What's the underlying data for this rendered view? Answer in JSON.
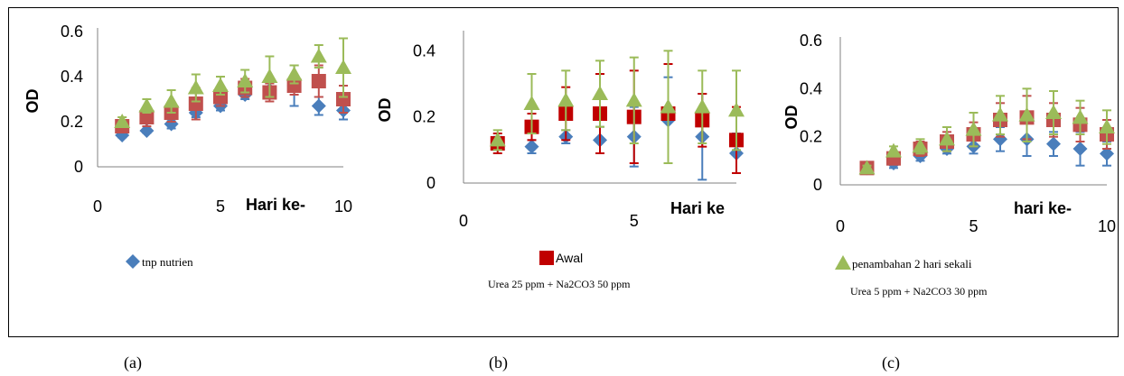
{
  "colors": {
    "blue": "#4a7ebb",
    "red": "#c0504d",
    "green": "#9bbb59",
    "red_marker": "#c00000",
    "axis": "#808080"
  },
  "panel_labels": [
    "(a)",
    "(b)",
    "(c)"
  ],
  "chart_data": [
    {
      "type": "scatter",
      "panel": "(a)",
      "xlabel": "Hari ke-",
      "ylabel": "OD",
      "xlim": [
        0,
        10
      ],
      "ylim": [
        0,
        0.6
      ],
      "xticks": [
        "0",
        "5",
        "10"
      ],
      "yticks": [
        "0",
        "0.2",
        "0.4",
        "0.6"
      ],
      "legend": [
        "tnp nutrien"
      ],
      "caption": "",
      "series": [
        {
          "color": "blue",
          "marker": "diamond",
          "x": [
            1,
            2,
            3,
            4,
            5,
            6,
            7,
            8,
            9,
            10
          ],
          "y": [
            0.14,
            0.16,
            0.19,
            0.24,
            0.27,
            0.32,
            0.34,
            0.36,
            0.27,
            0.25
          ],
          "err": [
            0.01,
            0.01,
            0.02,
            0.02,
            0.02,
            0.02,
            0.03,
            0.09,
            0.04,
            0.04
          ]
        },
        {
          "color": "red",
          "marker": "square",
          "x": [
            1,
            2,
            3,
            4,
            5,
            6,
            7,
            8,
            9,
            10
          ],
          "y": [
            0.18,
            0.22,
            0.24,
            0.28,
            0.31,
            0.35,
            0.33,
            0.36,
            0.38,
            0.3
          ],
          "err": [
            0.02,
            0.04,
            0.04,
            0.07,
            0.04,
            0.04,
            0.04,
            0.04,
            0.07,
            0.06
          ]
        },
        {
          "color": "green",
          "marker": "triangle",
          "x": [
            1,
            2,
            3,
            4,
            5,
            6,
            7,
            8,
            9,
            10
          ],
          "y": [
            0.2,
            0.27,
            0.29,
            0.35,
            0.36,
            0.38,
            0.4,
            0.41,
            0.49,
            0.44
          ],
          "err": [
            0.02,
            0.03,
            0.05,
            0.06,
            0.04,
            0.05,
            0.09,
            0.04,
            0.05,
            0.13
          ]
        }
      ]
    },
    {
      "type": "scatter",
      "panel": "(b)",
      "xlabel": "Hari ke",
      "ylabel": "OD",
      "xlim": [
        0,
        8
      ],
      "ylim": [
        0,
        0.45
      ],
      "xticks": [
        "0",
        "5"
      ],
      "yticks": [
        "0",
        "0.2",
        "0.4"
      ],
      "legend": [
        "Awal"
      ],
      "caption": "Urea 25 ppm + Na2CO3 50 ppm",
      "series": [
        {
          "color": "blue",
          "marker": "diamond",
          "x": [
            1,
            2,
            3,
            4,
            5,
            6,
            7,
            8
          ],
          "y": [
            0.12,
            0.11,
            0.14,
            0.13,
            0.14,
            0.19,
            0.14,
            0.09
          ],
          "err": [
            0.02,
            0.02,
            0.02,
            0.04,
            0.09,
            0.13,
            0.13,
            0.06
          ]
        },
        {
          "color": "red_marker",
          "marker": "square",
          "x": [
            1,
            2,
            3,
            4,
            5,
            6,
            7,
            8
          ],
          "y": [
            0.12,
            0.17,
            0.21,
            0.21,
            0.2,
            0.21,
            0.19,
            0.13
          ],
          "err": [
            0.03,
            0.04,
            0.08,
            0.12,
            0.14,
            0.15,
            0.08,
            0.1
          ]
        },
        {
          "color": "green",
          "marker": "triangle",
          "x": [
            1,
            2,
            3,
            4,
            5,
            6,
            7,
            8
          ],
          "y": [
            0.13,
            0.24,
            0.25,
            0.27,
            0.25,
            0.23,
            0.23,
            0.22
          ],
          "err": [
            0.03,
            0.09,
            0.09,
            0.1,
            0.13,
            0.17,
            0.11,
            0.12
          ]
        }
      ]
    },
    {
      "type": "scatter",
      "panel": "(c)",
      "xlabel": "hari ke-",
      "ylabel": "OD",
      "xlim": [
        0,
        10
      ],
      "ylim": [
        0,
        0.6
      ],
      "xticks": [
        "0",
        "5",
        "10"
      ],
      "yticks": [
        "0",
        "0.2",
        "0.4",
        "0.6"
      ],
      "legend": [
        "penambahan 2 hari sekali"
      ],
      "caption": "Urea 5 ppm + Na2CO3 30 ppm",
      "series": [
        {
          "color": "blue",
          "marker": "diamond",
          "x": [
            1,
            2,
            3,
            4,
            5,
            6,
            7,
            8,
            9,
            10
          ],
          "y": [
            0.07,
            0.09,
            0.12,
            0.15,
            0.16,
            0.19,
            0.19,
            0.17,
            0.15,
            0.13
          ],
          "err": [
            0.01,
            0.02,
            0.02,
            0.02,
            0.03,
            0.05,
            0.07,
            0.05,
            0.07,
            0.05
          ]
        },
        {
          "color": "red",
          "marker": "square",
          "x": [
            1,
            2,
            3,
            4,
            5,
            6,
            7,
            8,
            9,
            10
          ],
          "y": [
            0.07,
            0.11,
            0.15,
            0.18,
            0.21,
            0.27,
            0.28,
            0.27,
            0.25,
            0.21
          ],
          "err": [
            0.01,
            0.02,
            0.03,
            0.04,
            0.05,
            0.07,
            0.09,
            0.07,
            0.07,
            0.06
          ]
        },
        {
          "color": "green",
          "marker": "triangle",
          "x": [
            1,
            2,
            3,
            4,
            5,
            6,
            7,
            8,
            9,
            10
          ],
          "y": [
            0.07,
            0.14,
            0.16,
            0.19,
            0.23,
            0.29,
            0.29,
            0.3,
            0.28,
            0.24
          ],
          "err": [
            0.01,
            0.02,
            0.03,
            0.05,
            0.07,
            0.08,
            0.11,
            0.09,
            0.07,
            0.07
          ]
        }
      ]
    }
  ]
}
